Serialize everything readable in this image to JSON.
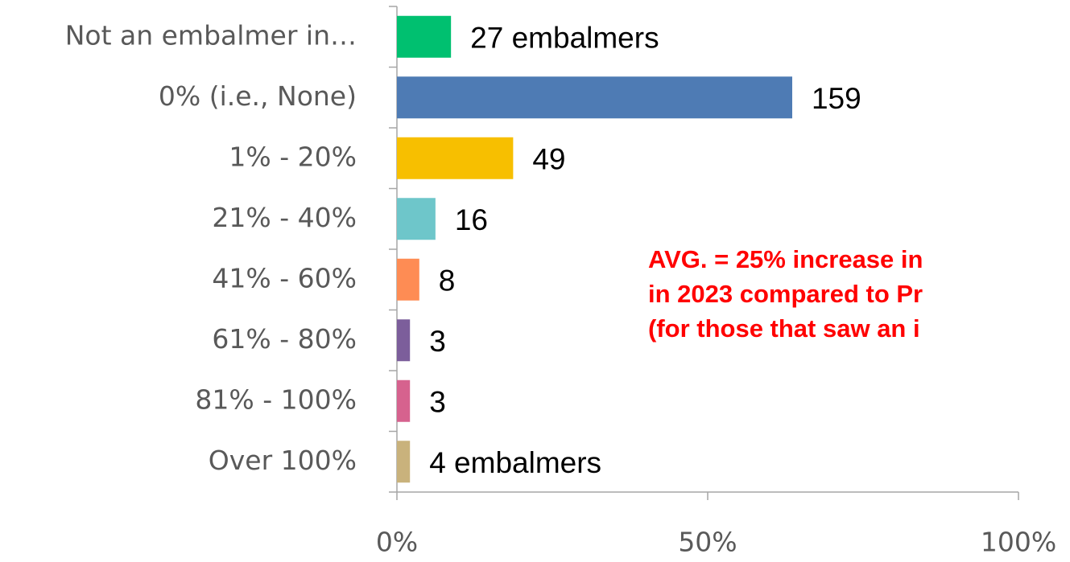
{
  "chart_data": {
    "type": "bar",
    "orientation": "horizontal",
    "categories": [
      "Not an embalmer in…",
      "0% (i.e., None)",
      "1% - 20%",
      "21% - 40%",
      "41% - 60%",
      "61% - 80%",
      "81% - 100%",
      "Over 100%"
    ],
    "values": [
      8.7,
      63.6,
      18.7,
      6.2,
      3.6,
      2.1,
      2.1,
      2.1
    ],
    "value_labels": [
      "27 embalmers",
      "159",
      "49",
      "16",
      "8",
      "3",
      "3",
      "4 embalmers"
    ],
    "colors": [
      "#00c070",
      "#4e7bb4",
      "#f7bf00",
      "#6ec6ca",
      "#fe8c54",
      "#7c5e9b",
      "#d6628e",
      "#c9b27c"
    ],
    "xlim": [
      0,
      100
    ],
    "xticks": [
      {
        "value": 0,
        "label": "0%"
      },
      {
        "value": 50,
        "label": "50%"
      },
      {
        "value": 100,
        "label": "100%"
      }
    ],
    "annotations": [
      "AVG. = 25% increase in",
      "in 2023 compared to Pr",
      "(for those that saw an i"
    ]
  }
}
